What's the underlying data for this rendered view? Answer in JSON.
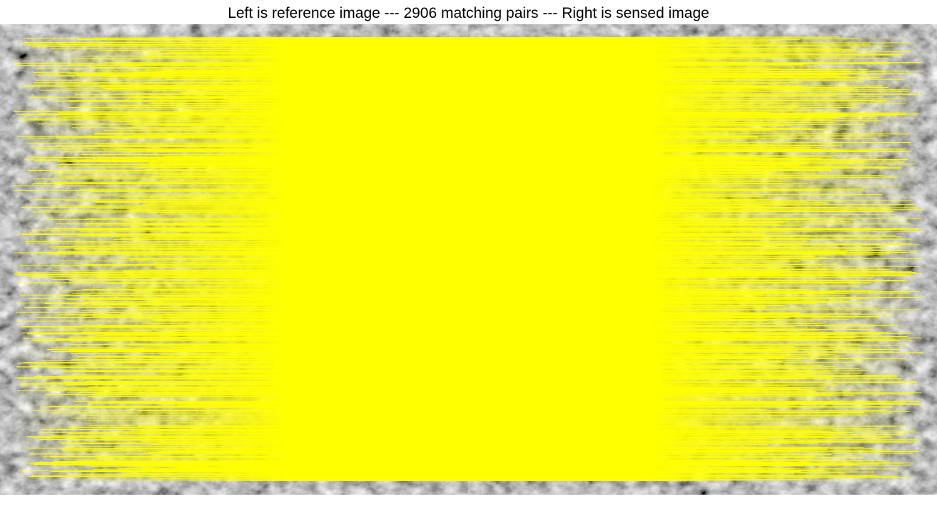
{
  "figure": {
    "title": "Left is reference image --- 2906 matching pairs --- Right is sensed image",
    "left_image_role": "reference image",
    "right_image_role": "sensed image",
    "matching_pairs": 2906
  },
  "colors": {
    "match_line": "#ffff00",
    "background": "#ffffff"
  }
}
